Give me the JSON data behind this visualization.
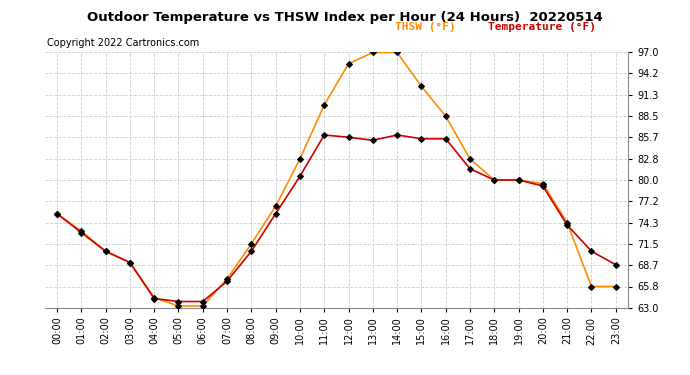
{
  "title": "Outdoor Temperature vs THSW Index per Hour (24 Hours)  20220514",
  "copyright": "Copyright 2022 Cartronics.com",
  "legend_thsw": "THSW (°F) ",
  "legend_temp": "Temperature (°F)",
  "thsw_color": "#FF8C00",
  "temp_color": "#CC0000",
  "marker_color": "black",
  "background_color": "#ffffff",
  "grid_color": "#cccccc",
  "ylim": [
    63.0,
    97.0
  ],
  "yticks": [
    63.0,
    65.8,
    68.7,
    71.5,
    74.3,
    77.2,
    80.0,
    82.8,
    85.7,
    88.5,
    91.3,
    94.2,
    97.0
  ],
  "hours": [
    "00:00",
    "01:00",
    "02:00",
    "03:00",
    "04:00",
    "05:00",
    "06:00",
    "07:00",
    "08:00",
    "09:00",
    "10:00",
    "11:00",
    "12:00",
    "13:00",
    "14:00",
    "15:00",
    "16:00",
    "17:00",
    "18:00",
    "19:00",
    "20:00",
    "21:00",
    "22:00",
    "23:00"
  ],
  "thsw": [
    75.5,
    73.2,
    70.5,
    69.0,
    64.3,
    63.2,
    63.2,
    66.8,
    71.5,
    76.5,
    82.8,
    90.0,
    95.5,
    97.0,
    97.0,
    92.5,
    88.5,
    82.8,
    80.0,
    80.0,
    79.5,
    74.3,
    65.8,
    65.8
  ],
  "temp": [
    75.5,
    73.0,
    70.5,
    69.0,
    64.2,
    63.8,
    63.8,
    66.5,
    70.5,
    75.5,
    80.5,
    86.0,
    85.7,
    85.3,
    86.0,
    85.5,
    85.5,
    81.5,
    80.0,
    80.0,
    79.2,
    74.0,
    70.5,
    68.7
  ],
  "title_fontsize": 9.5,
  "copyright_fontsize": 7,
  "legend_fontsize": 8,
  "tick_fontsize": 7,
  "marker_size": 8
}
